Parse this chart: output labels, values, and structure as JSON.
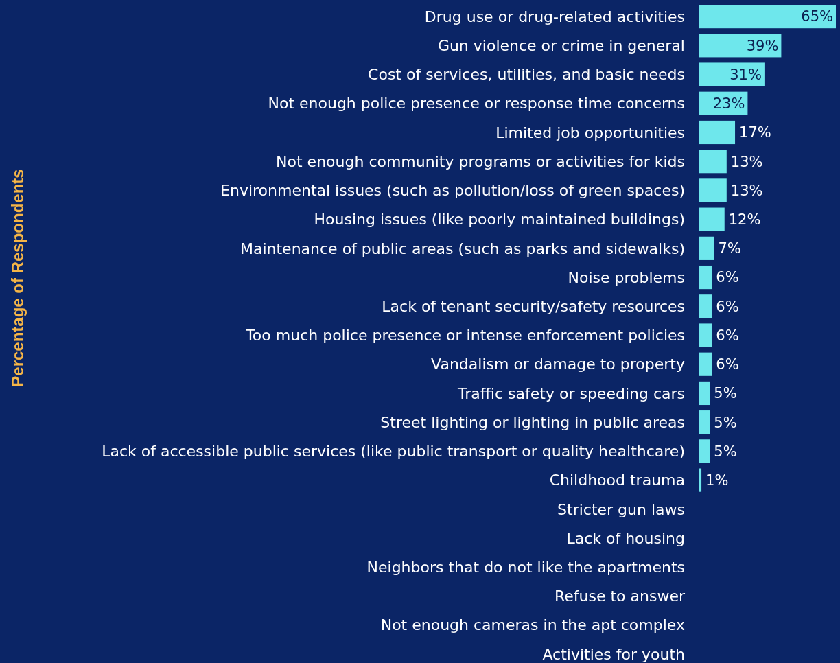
{
  "chart_data": {
    "type": "bar",
    "orientation": "horizontal",
    "ylabel": "Percentage of Respondents",
    "categories": [
      "Drug use or drug-related activities",
      "Gun violence or crime in general",
      "Cost of services, utilities, and basic needs",
      "Not enough police presence or response time concerns",
      "Limited job opportunities",
      "Not enough community programs or activities for kids",
      "Environmental issues (such as pollution/loss of green spaces)",
      "Housing issues (like poorly maintained buildings)",
      "Maintenance of public areas (such as parks and sidewalks)",
      "Noise problems",
      "Lack of tenant security/safety resources",
      "Too much police presence or intense enforcement policies",
      "Vandalism or damage to property",
      "Traffic safety or speeding cars",
      "Street lighting or lighting in public areas",
      "Lack of accessible public services (like public transport or quality healthcare)",
      "Childhood trauma",
      "Stricter gun laws",
      "Lack of housing",
      "Neighbors that do not like the apartments",
      "Refuse to answer",
      "Not enough cameras in the apt complex",
      "Activities for youth"
    ],
    "values": [
      65,
      39,
      31,
      23,
      17,
      13,
      13,
      12,
      7,
      6,
      6,
      6,
      6,
      5,
      5,
      5,
      1,
      null,
      null,
      null,
      null,
      null,
      null
    ],
    "value_labels": [
      "65%",
      "39%",
      "31%",
      "23%",
      "17%",
      "13%",
      "13%",
      "12%",
      "7%",
      "6%",
      "6%",
      "6%",
      "6%",
      "5%",
      "5%",
      "5%",
      "1%",
      null,
      null,
      null,
      null,
      null,
      null
    ],
    "color": "#6ee7ec"
  }
}
